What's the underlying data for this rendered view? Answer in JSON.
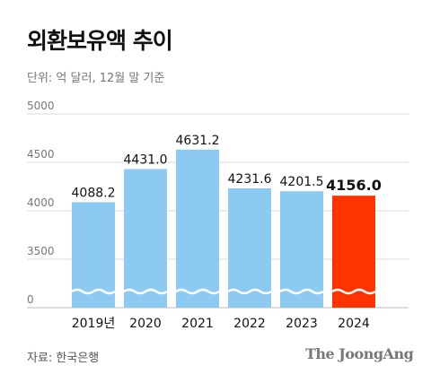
{
  "title": "외환보유액 추이",
  "unit_note": "단위: 억 달러, 12월 말 기준",
  "source": "자료: 한국은행",
  "brand": "The JoongAng",
  "colors": {
    "bar": "#8DCAF1",
    "highlight_bar": "#FF3300",
    "grid": "#D9D9D9",
    "axis_text": "#777777"
  },
  "chart_data": {
    "type": "bar",
    "title": "외환보유액 추이",
    "categories": [
      "2019년",
      "2020",
      "2021",
      "2022",
      "2023",
      "2024"
    ],
    "values": [
      4088.2,
      4431.0,
      4631.2,
      4231.6,
      4201.5,
      4156.0
    ],
    "value_labels": [
      "4088.2",
      "4431.0",
      "4631.2",
      "4231.6",
      "4201.5",
      "4156.0"
    ],
    "highlight_index": 5,
    "y_ticks": [
      "5000",
      "4500",
      "4000",
      "3500",
      "0"
    ],
    "y_tick_values": [
      5000,
      4500,
      4000,
      3500,
      3000
    ],
    "ylim": [
      3000,
      5000
    ],
    "axis_break": true,
    "grid": true
  }
}
